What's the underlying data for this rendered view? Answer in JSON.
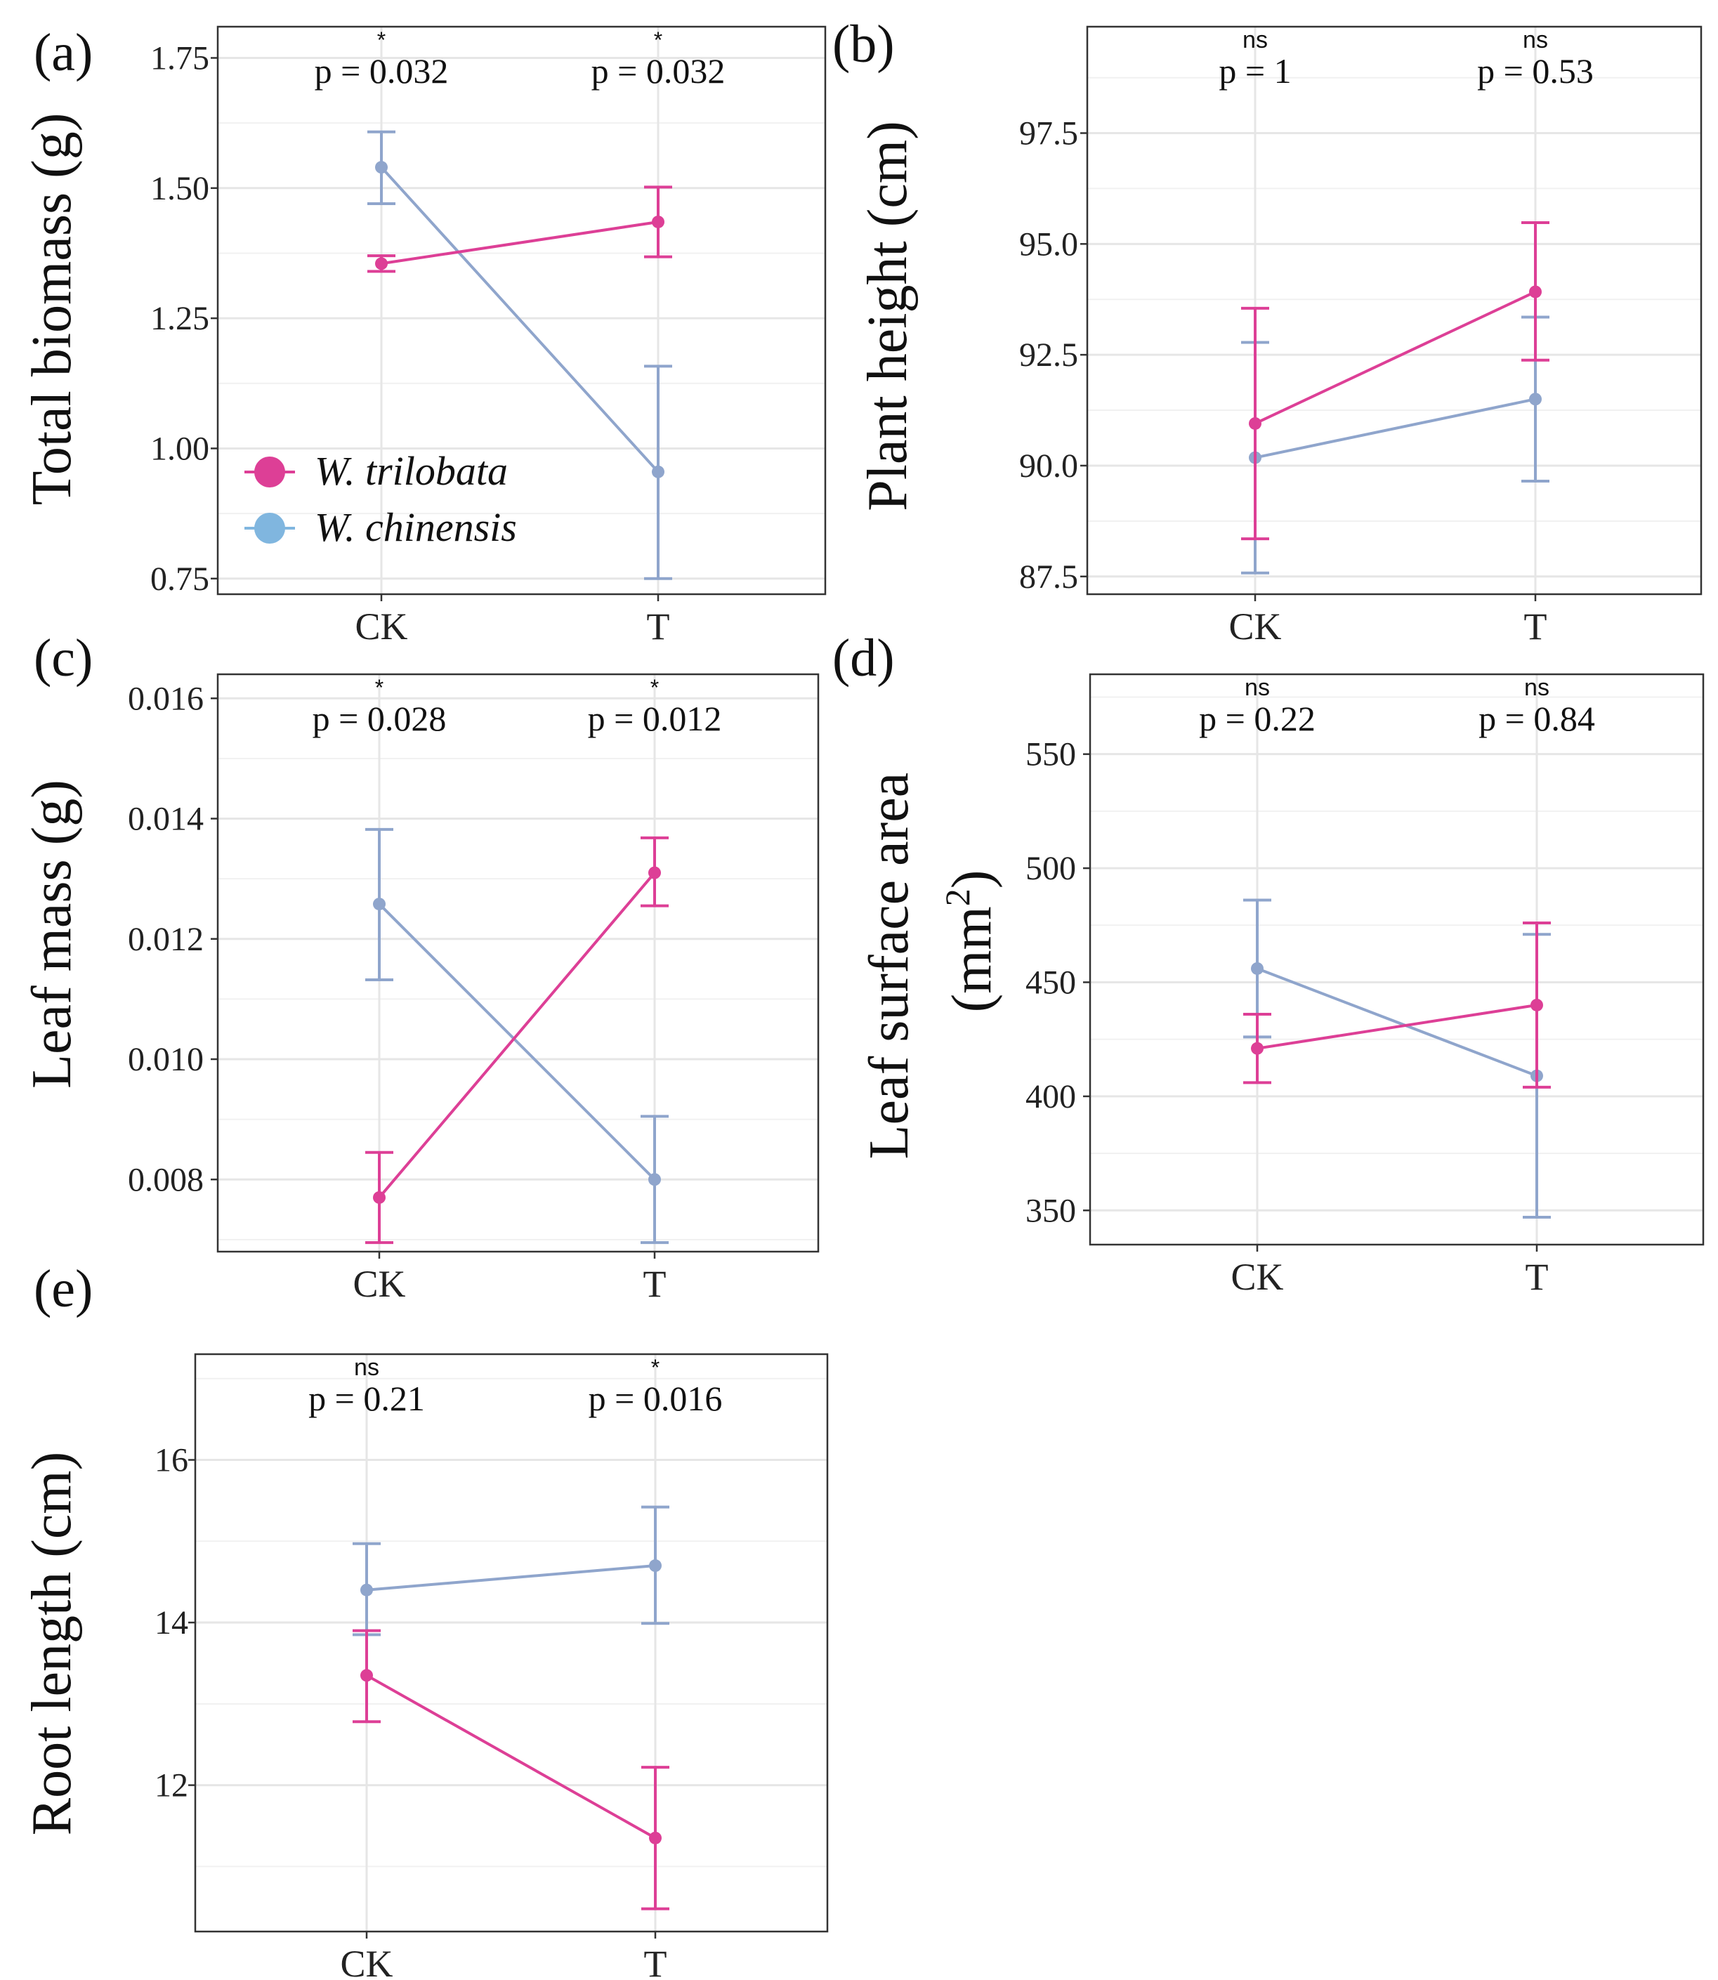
{
  "colors": {
    "trilobata": "#dd3f96",
    "chinensis": "#8fa5cc",
    "legend_chinensis": "#80b6df",
    "grid": "#e6e6e6",
    "panel_border": "#333333"
  },
  "legend": {
    "trilobata": "W. trilobata",
    "chinensis": "W. chinensis"
  },
  "chart_data": [
    {
      "type": "line",
      "panel": "(a)",
      "ylabel": "Total biomass (g)",
      "categories": [
        "CK",
        "T"
      ],
      "ylim": [
        0.72,
        1.81
      ],
      "yticks": [
        0.75,
        1.0,
        1.25,
        1.5,
        1.75
      ],
      "ytick_labels": [
        "0.75",
        "1.00",
        "1.25",
        "1.50",
        "1.75"
      ],
      "series": [
        {
          "name": "W. trilobata",
          "values": [
            1.355,
            1.435
          ],
          "lower": [
            1.34,
            1.368
          ],
          "upper": [
            1.37,
            1.502
          ]
        },
        {
          "name": "W. chinensis",
          "values": [
            1.54,
            0.955
          ],
          "lower": [
            1.47,
            0.75
          ],
          "upper": [
            1.608,
            1.158
          ]
        }
      ],
      "annotations": [
        {
          "category": "CK",
          "sig": "*",
          "p": "p = 0.032"
        },
        {
          "category": "T",
          "sig": "*",
          "p": "p = 0.032"
        }
      ]
    },
    {
      "type": "line",
      "panel": "(b)",
      "ylabel": "Plant height (cm)",
      "categories": [
        "CK",
        "T"
      ],
      "ylim": [
        87.1,
        99.9
      ],
      "yticks": [
        87.5,
        90.0,
        92.5,
        95.0,
        97.5
      ],
      "ytick_labels": [
        "87.5",
        "90.0",
        "92.5",
        "95.0",
        "97.5"
      ],
      "series": [
        {
          "name": "W. trilobata",
          "values": [
            90.95,
            93.92
          ],
          "lower": [
            88.35,
            92.38
          ],
          "upper": [
            93.55,
            95.48
          ]
        },
        {
          "name": "W. chinensis",
          "values": [
            90.18,
            91.5
          ],
          "lower": [
            87.58,
            89.65
          ],
          "upper": [
            92.78,
            93.35
          ]
        }
      ],
      "annotations": [
        {
          "category": "CK",
          "sig": "ns",
          "p": "p = 1"
        },
        {
          "category": "T",
          "sig": "ns",
          "p": "p = 0.53"
        }
      ]
    },
    {
      "type": "line",
      "panel": "(c)",
      "ylabel": "Leaf mass (g)",
      "categories": [
        "CK",
        "T"
      ],
      "ylim": [
        0.0068,
        0.0164
      ],
      "yticks": [
        0.008,
        0.01,
        0.012,
        0.014,
        0.016
      ],
      "ytick_labels": [
        "0.008",
        "0.010",
        "0.012",
        "0.014",
        "0.016"
      ],
      "series": [
        {
          "name": "W. trilobata",
          "values": [
            0.0077,
            0.0131
          ],
          "lower": [
            0.00695,
            0.01255
          ],
          "upper": [
            0.00845,
            0.01368
          ]
        },
        {
          "name": "W. chinensis",
          "values": [
            0.01258,
            0.008
          ],
          "lower": [
            0.01132,
            0.00695
          ],
          "upper": [
            0.01382,
            0.00905
          ]
        }
      ],
      "annotations": [
        {
          "category": "CK",
          "sig": "*",
          "p": "p = 0.028"
        },
        {
          "category": "T",
          "sig": "*",
          "p": "p = 0.012"
        }
      ]
    },
    {
      "type": "line",
      "panel": "(d)",
      "ylabel_line1": "Leaf surface area",
      "ylabel_line2": "(mm",
      "ylabel_sup": "2",
      "ylabel_close": ")",
      "categories": [
        "CK",
        "T"
      ],
      "ylim": [
        335,
        585
      ],
      "yticks": [
        350,
        400,
        450,
        500,
        550
      ],
      "ytick_labels": [
        "350",
        "400",
        "450",
        "500",
        "550"
      ],
      "series": [
        {
          "name": "W. trilobata",
          "values": [
            421,
            440
          ],
          "lower": [
            406,
            404
          ],
          "upper": [
            436,
            476
          ]
        },
        {
          "name": "W. chinensis",
          "values": [
            456,
            409
          ],
          "lower": [
            426,
            347
          ],
          "upper": [
            486,
            471
          ]
        }
      ],
      "annotations": [
        {
          "category": "CK",
          "sig": "ns",
          "p": "p = 0.22"
        },
        {
          "category": "T",
          "sig": "ns",
          "p": "p = 0.84"
        }
      ]
    },
    {
      "type": "line",
      "panel": "(e)",
      "ylabel": "Root length (cm)",
      "categories": [
        "CK",
        "T"
      ],
      "ylim": [
        10.2,
        17.3
      ],
      "yticks": [
        12,
        14,
        16
      ],
      "ytick_labels": [
        "12",
        "14",
        "16"
      ],
      "series": [
        {
          "name": "W. trilobata",
          "values": [
            13.35,
            11.35
          ],
          "lower": [
            12.78,
            10.48
          ],
          "upper": [
            13.9,
            12.22
          ]
        },
        {
          "name": "W. chinensis",
          "values": [
            14.4,
            14.7
          ],
          "lower": [
            13.85,
            13.99
          ],
          "upper": [
            14.97,
            15.42
          ]
        }
      ],
      "annotations": [
        {
          "category": "CK",
          "sig": "ns",
          "p": "p = 0.21"
        },
        {
          "category": "T",
          "sig": "*",
          "p": "p = 0.016"
        }
      ]
    }
  ]
}
